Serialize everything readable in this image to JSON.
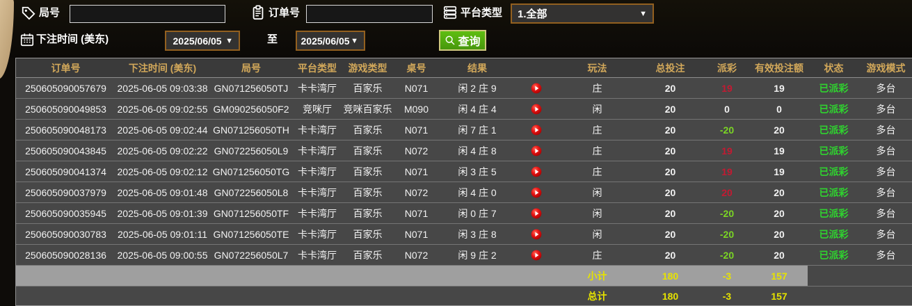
{
  "filters": {
    "round_label": "局号",
    "round_value": "",
    "order_label": "订单号",
    "order_value": "",
    "platform_label": "平台类型",
    "platform_value": "1.全部",
    "bet_time_label": "下注时间 (美东)",
    "date_from": "2025/06/05",
    "to_label": "至",
    "date_to": "2025/06/05",
    "search_label": "查询"
  },
  "table": {
    "headers": [
      "订单号",
      "下注时间 (美东)",
      "局号",
      "平台类型",
      "游戏类型",
      "桌号",
      "结果",
      "",
      "玩法",
      "总投注",
      "派彩",
      "有效投注额",
      "状态",
      "游戏模式"
    ],
    "rows": [
      {
        "order": "250605090057679",
        "time": "2025-06-05 09:03:38",
        "round": "GN071256050TJ",
        "platform": "卡卡湾厅",
        "game": "百家乐",
        "table_no": "N071",
        "result": "闲 2 庄 9",
        "bet_type": "庄",
        "bet_total": "20",
        "payout": "19",
        "payout_color": "pos",
        "valid_bet": "19",
        "status": "已派彩",
        "mode": "多台"
      },
      {
        "order": "250605090049853",
        "time": "2025-06-05 09:02:55",
        "round": "GM090256050F2",
        "platform": "竞咪厅",
        "game": "竞咪百家乐",
        "table_no": "M090",
        "result": "闲 4 庄 4",
        "bet_type": "闲",
        "bet_total": "20",
        "payout": "0",
        "payout_color": "zero",
        "valid_bet": "0",
        "status": "已派彩",
        "mode": "多台"
      },
      {
        "order": "250605090048173",
        "time": "2025-06-05 09:02:44",
        "round": "GN071256050TH",
        "platform": "卡卡湾厅",
        "game": "百家乐",
        "table_no": "N071",
        "result": "闲 7 庄 1",
        "bet_type": "庄",
        "bet_total": "20",
        "payout": "-20",
        "payout_color": "neg",
        "valid_bet": "20",
        "status": "已派彩",
        "mode": "多台"
      },
      {
        "order": "250605090043845",
        "time": "2025-06-05 09:02:22",
        "round": "GN072256050L9",
        "platform": "卡卡湾厅",
        "game": "百家乐",
        "table_no": "N072",
        "result": "闲 4 庄 8",
        "bet_type": "庄",
        "bet_total": "20",
        "payout": "19",
        "payout_color": "pos",
        "valid_bet": "19",
        "status": "已派彩",
        "mode": "多台"
      },
      {
        "order": "250605090041374",
        "time": "2025-06-05 09:02:12",
        "round": "GN071256050TG",
        "platform": "卡卡湾厅",
        "game": "百家乐",
        "table_no": "N071",
        "result": "闲 3 庄 5",
        "bet_type": "庄",
        "bet_total": "20",
        "payout": "19",
        "payout_color": "pos",
        "valid_bet": "19",
        "status": "已派彩",
        "mode": "多台"
      },
      {
        "order": "250605090037979",
        "time": "2025-06-05 09:01:48",
        "round": "GN072256050L8",
        "platform": "卡卡湾厅",
        "game": "百家乐",
        "table_no": "N072",
        "result": "闲 4 庄 0",
        "bet_type": "闲",
        "bet_total": "20",
        "payout": "20",
        "payout_color": "pos",
        "valid_bet": "20",
        "status": "已派彩",
        "mode": "多台"
      },
      {
        "order": "250605090035945",
        "time": "2025-06-05 09:01:39",
        "round": "GN071256050TF",
        "platform": "卡卡湾厅",
        "game": "百家乐",
        "table_no": "N071",
        "result": "闲 0 庄 7",
        "bet_type": "闲",
        "bet_total": "20",
        "payout": "-20",
        "payout_color": "neg",
        "valid_bet": "20",
        "status": "已派彩",
        "mode": "多台"
      },
      {
        "order": "250605090030783",
        "time": "2025-06-05 09:01:11",
        "round": "GN071256050TE",
        "platform": "卡卡湾厅",
        "game": "百家乐",
        "table_no": "N071",
        "result": "闲 3 庄 8",
        "bet_type": "闲",
        "bet_total": "20",
        "payout": "-20",
        "payout_color": "neg",
        "valid_bet": "20",
        "status": "已派彩",
        "mode": "多台"
      },
      {
        "order": "250605090028136",
        "time": "2025-06-05 09:00:55",
        "round": "GN072256050L7",
        "platform": "卡卡湾厅",
        "game": "百家乐",
        "table_no": "N072",
        "result": "闲 9 庄 2",
        "bet_type": "庄",
        "bet_total": "20",
        "payout": "-20",
        "payout_color": "neg",
        "valid_bet": "20",
        "status": "已派彩",
        "mode": "多台"
      }
    ],
    "subtotal": {
      "label": "小计",
      "bet_total": "180",
      "payout": "-3",
      "valid_bet": "157"
    },
    "total": {
      "label": "总计",
      "bet_total": "180",
      "payout": "-3",
      "valid_bet": "157"
    }
  },
  "colors": {
    "header_gold": "#d2a85a",
    "payout_positive_red": "#c41a32",
    "payout_negative_green": "#7bd624",
    "status_green": "#2fd32f",
    "total_yellow": "#e6e300",
    "query_button_green": "#55ae14",
    "subtotal_band_gray": "#9f9f9f"
  }
}
